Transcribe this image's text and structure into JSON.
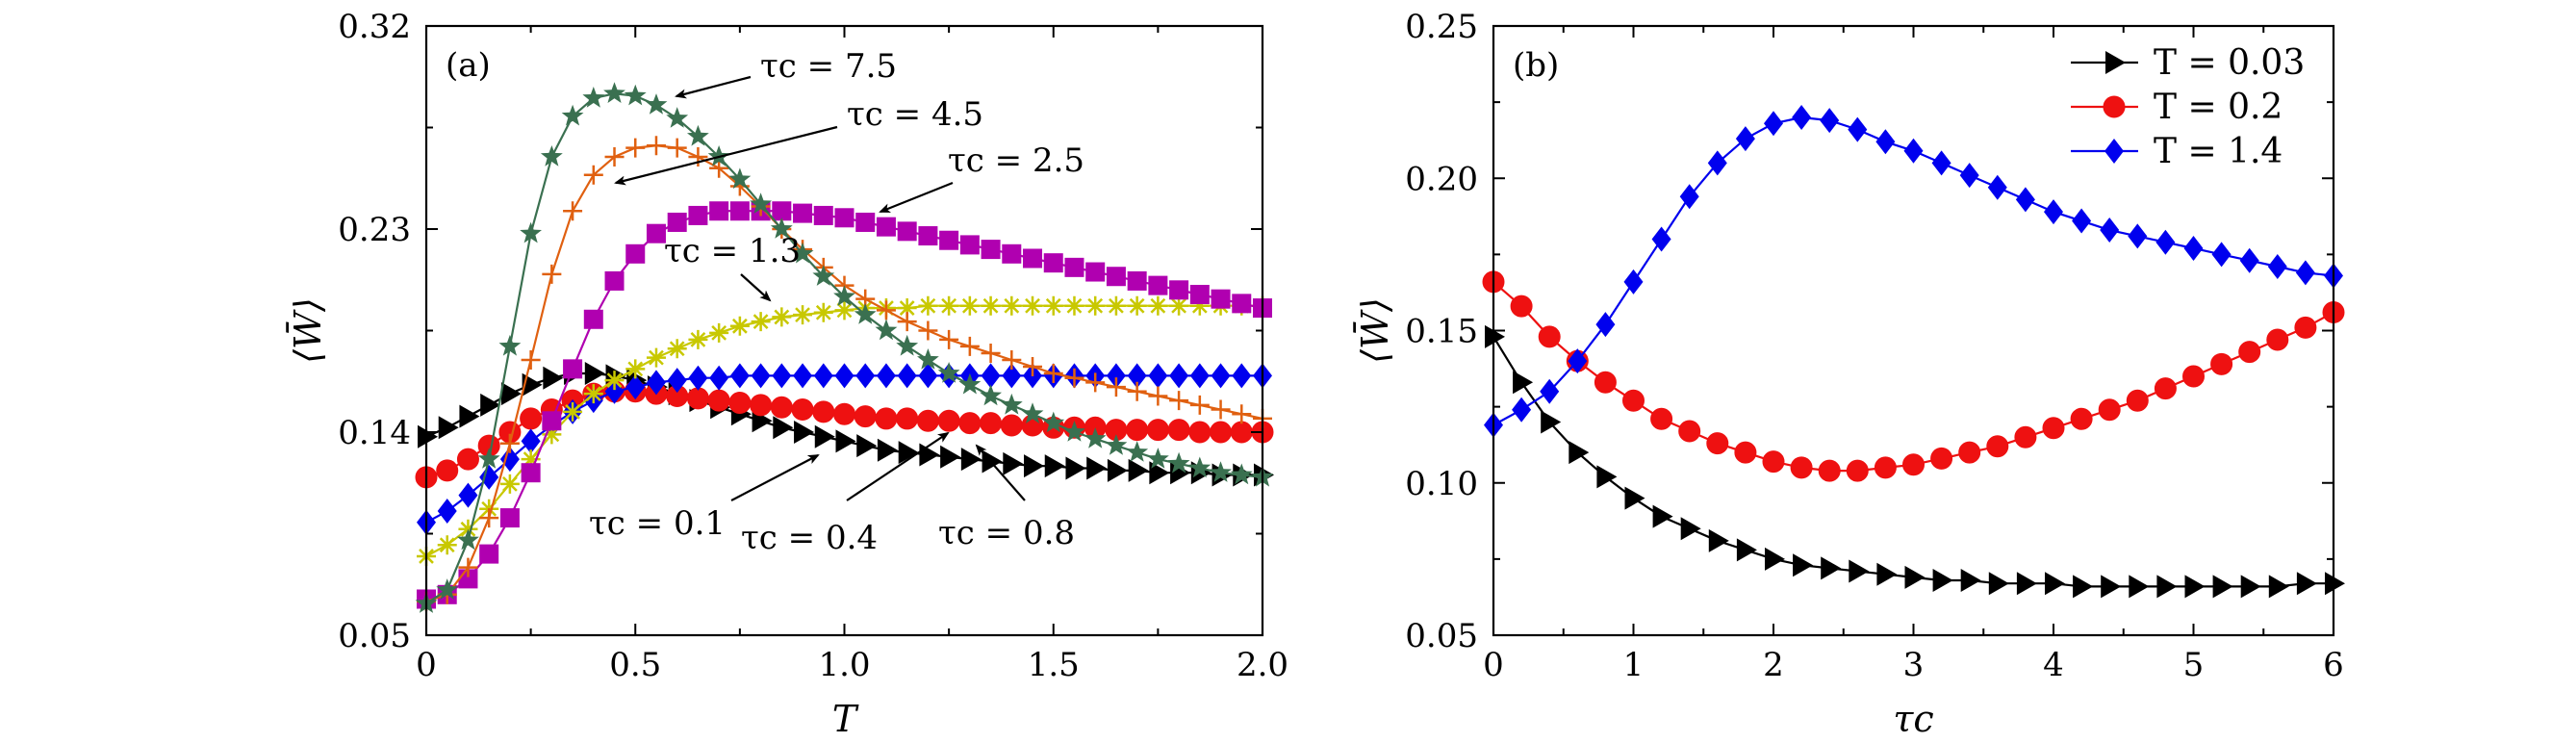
{
  "chart_data": [
    {
      "panel_label": "(a)",
      "type": "line",
      "xlabel": "T",
      "ylabel": "⟨W̄⟩",
      "xlim": [
        0,
        2.0
      ],
      "ylim": [
        0.05,
        0.32
      ],
      "xticks": [
        "0",
        "0.5",
        "1.0",
        "1.5",
        "2.0"
      ],
      "xtick_values": [
        0,
        0.5,
        1.0,
        1.5,
        2.0
      ],
      "yticks": [
        "0.05",
        "0.14",
        "0.23",
        "0.32"
      ],
      "ytick_values": [
        0.05,
        0.14,
        0.23,
        0.32
      ],
      "grid": false,
      "x": [
        0,
        0.05,
        0.1,
        0.15,
        0.2,
        0.25,
        0.3,
        0.35,
        0.4,
        0.45,
        0.5,
        0.55,
        0.6,
        0.65,
        0.7,
        0.75,
        0.8,
        0.85,
        0.9,
        0.95,
        1.0,
        1.05,
        1.1,
        1.15,
        1.2,
        1.25,
        1.3,
        1.35,
        1.4,
        1.45,
        1.5,
        1.55,
        1.6,
        1.65,
        1.7,
        1.75,
        1.8,
        1.85,
        1.9,
        1.95,
        2.0
      ],
      "series": [
        {
          "label": "τc = 0.1",
          "color": "#000000",
          "marker": "triangle-right",
          "values": [
            0.138,
            0.142,
            0.147,
            0.152,
            0.157,
            0.161,
            0.164,
            0.166,
            0.166,
            0.165,
            0.163,
            0.16,
            0.157,
            0.154,
            0.151,
            0.148,
            0.145,
            0.142,
            0.14,
            0.138,
            0.136,
            0.134,
            0.132,
            0.131,
            0.13,
            0.129,
            0.128,
            0.127,
            0.126,
            0.125,
            0.125,
            0.124,
            0.124,
            0.123,
            0.123,
            0.122,
            0.122,
            0.122,
            0.121,
            0.121,
            0.121
          ]
        },
        {
          "label": "τc = 0.4",
          "color": "#ee1111",
          "marker": "circle",
          "values": [
            0.12,
            0.123,
            0.128,
            0.134,
            0.14,
            0.146,
            0.15,
            0.154,
            0.157,
            0.158,
            0.158,
            0.157,
            0.156,
            0.155,
            0.154,
            0.153,
            0.152,
            0.151,
            0.15,
            0.149,
            0.148,
            0.147,
            0.146,
            0.146,
            0.145,
            0.145,
            0.144,
            0.144,
            0.143,
            0.143,
            0.142,
            0.142,
            0.142,
            0.141,
            0.141,
            0.141,
            0.141,
            0.14,
            0.14,
            0.14,
            0.14
          ]
        },
        {
          "label": "τc = 0.8",
          "color": "#0000ee",
          "marker": "diamond",
          "values": [
            0.1,
            0.105,
            0.112,
            0.12,
            0.128,
            0.136,
            0.143,
            0.149,
            0.154,
            0.158,
            0.16,
            0.162,
            0.163,
            0.164,
            0.164,
            0.165,
            0.165,
            0.165,
            0.165,
            0.165,
            0.165,
            0.165,
            0.165,
            0.165,
            0.165,
            0.165,
            0.165,
            0.165,
            0.165,
            0.165,
            0.165,
            0.165,
            0.165,
            0.165,
            0.165,
            0.165,
            0.165,
            0.165,
            0.165,
            0.165,
            0.165
          ]
        },
        {
          "label": "τc = 1.3",
          "color": "#c8c800",
          "marker": "asterisk",
          "values": [
            0.085,
            0.09,
            0.097,
            0.106,
            0.117,
            0.128,
            0.139,
            0.149,
            0.157,
            0.163,
            0.168,
            0.173,
            0.177,
            0.181,
            0.184,
            0.187,
            0.189,
            0.191,
            0.192,
            0.193,
            0.194,
            0.195,
            0.195,
            0.195,
            0.196,
            0.196,
            0.196,
            0.196,
            0.196,
            0.196,
            0.196,
            0.196,
            0.196,
            0.196,
            0.196,
            0.196,
            0.196,
            0.196,
            0.196,
            0.196,
            0.196
          ]
        },
        {
          "label": "τc = 2.5",
          "color": "#b000b0",
          "marker": "square",
          "values": [
            0.066,
            0.068,
            0.075,
            0.086,
            0.102,
            0.122,
            0.145,
            0.168,
            0.19,
            0.207,
            0.219,
            0.228,
            0.233,
            0.236,
            0.238,
            0.238,
            0.238,
            0.238,
            0.237,
            0.236,
            0.235,
            0.233,
            0.231,
            0.229,
            0.227,
            0.225,
            0.223,
            0.221,
            0.219,
            0.217,
            0.215,
            0.213,
            0.211,
            0.209,
            0.207,
            0.205,
            0.203,
            0.201,
            0.199,
            0.197,
            0.195
          ]
        },
        {
          "label": "τc = 4.5",
          "color": "#e06010",
          "marker": "plus",
          "values": [
            0.065,
            0.068,
            0.08,
            0.102,
            0.135,
            0.172,
            0.21,
            0.238,
            0.254,
            0.262,
            0.266,
            0.267,
            0.266,
            0.262,
            0.257,
            0.249,
            0.24,
            0.23,
            0.221,
            0.213,
            0.205,
            0.199,
            0.194,
            0.189,
            0.185,
            0.181,
            0.178,
            0.175,
            0.172,
            0.169,
            0.166,
            0.164,
            0.162,
            0.16,
            0.158,
            0.156,
            0.154,
            0.152,
            0.15,
            0.148,
            0.146
          ]
        },
        {
          "label": "τc = 7.5",
          "color": "#3a7050",
          "marker": "star",
          "values": [
            0.064,
            0.07,
            0.092,
            0.128,
            0.178,
            0.228,
            0.262,
            0.28,
            0.288,
            0.29,
            0.289,
            0.285,
            0.279,
            0.271,
            0.262,
            0.252,
            0.241,
            0.23,
            0.219,
            0.209,
            0.2,
            0.192,
            0.185,
            0.178,
            0.172,
            0.166,
            0.161,
            0.156,
            0.152,
            0.148,
            0.144,
            0.14,
            0.137,
            0.134,
            0.131,
            0.128,
            0.126,
            0.124,
            0.122,
            0.121,
            0.12
          ]
        }
      ],
      "annotations": [
        "τc = 7.5",
        "τc = 4.5",
        "τc = 2.5",
        "τc = 1.3",
        "τc = 0.1",
        "τc = 0.4",
        "τc = 0.8"
      ]
    },
    {
      "panel_label": "(b)",
      "type": "line",
      "xlabel": "τc",
      "ylabel": "⟨W̄⟩",
      "xlim": [
        0,
        6
      ],
      "ylim": [
        0.05,
        0.25
      ],
      "xticks": [
        "0",
        "1",
        "2",
        "3",
        "4",
        "5",
        "6"
      ],
      "xtick_values": [
        0,
        1,
        2,
        3,
        4,
        5,
        6
      ],
      "yticks": [
        "0.05",
        "0.10",
        "0.15",
        "0.20",
        "0.25"
      ],
      "ytick_values": [
        0.05,
        0.1,
        0.15,
        0.2,
        0.25
      ],
      "grid": false,
      "legend_position": "top-right",
      "x": [
        0,
        0.2,
        0.4,
        0.6,
        0.8,
        1.0,
        1.2,
        1.4,
        1.6,
        1.8,
        2.0,
        2.2,
        2.4,
        2.6,
        2.8,
        3.0,
        3.2,
        3.4,
        3.6,
        3.8,
        4.0,
        4.2,
        4.4,
        4.6,
        4.8,
        5.0,
        5.2,
        5.4,
        5.6,
        5.8,
        6.0
      ],
      "series": [
        {
          "name": "T = 0.03",
          "color": "#000000",
          "marker": "triangle-right",
          "values": [
            0.148,
            0.133,
            0.12,
            0.11,
            0.102,
            0.095,
            0.089,
            0.085,
            0.081,
            0.078,
            0.075,
            0.073,
            0.072,
            0.071,
            0.07,
            0.069,
            0.068,
            0.068,
            0.067,
            0.067,
            0.067,
            0.066,
            0.066,
            0.066,
            0.066,
            0.066,
            0.066,
            0.066,
            0.066,
            0.067,
            0.067
          ]
        },
        {
          "name": "T = 0.2",
          "color": "#ee1111",
          "marker": "circle",
          "values": [
            0.166,
            0.158,
            0.148,
            0.14,
            0.133,
            0.127,
            0.121,
            0.117,
            0.113,
            0.11,
            0.107,
            0.105,
            0.104,
            0.104,
            0.105,
            0.106,
            0.108,
            0.11,
            0.112,
            0.115,
            0.118,
            0.121,
            0.124,
            0.127,
            0.131,
            0.135,
            0.139,
            0.143,
            0.147,
            0.151,
            0.156
          ]
        },
        {
          "name": "T = 1.4",
          "color": "#0000ee",
          "marker": "diamond",
          "values": [
            0.119,
            0.124,
            0.13,
            0.14,
            0.152,
            0.166,
            0.18,
            0.194,
            0.205,
            0.213,
            0.218,
            0.22,
            0.219,
            0.216,
            0.212,
            0.209,
            0.205,
            0.201,
            0.197,
            0.193,
            0.189,
            0.186,
            0.183,
            0.181,
            0.179,
            0.177,
            0.175,
            0.173,
            0.171,
            0.169,
            0.168
          ]
        }
      ]
    }
  ]
}
